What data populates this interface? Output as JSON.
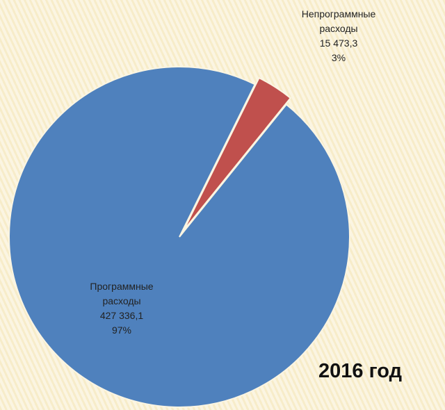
{
  "chart_data": {
    "type": "pie",
    "annotation": "2016 год",
    "categories": [
      "Программные расходы",
      "Непрограммные расходы"
    ],
    "values": [
      427336.1,
      15473.3
    ],
    "value_labels": [
      "427 336,1",
      "15 473,3"
    ],
    "percents": [
      97,
      3
    ],
    "percent_labels": [
      "97%",
      "3%"
    ],
    "colors": [
      "#4f81bd",
      "#c0504d"
    ]
  }
}
